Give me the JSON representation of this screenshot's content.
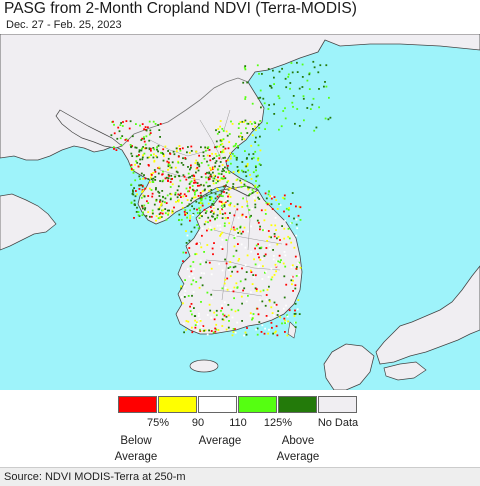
{
  "title": "PASG from 2-Month Cropland NDVI (Terra-MODIS)",
  "date_range": "Dec. 27 - Feb. 25, 2023",
  "legend": {
    "swatches": [
      {
        "name": "swatch-red",
        "color": "#ff0000"
      },
      {
        "name": "swatch-yellow",
        "color": "#ffff00"
      },
      {
        "name": "swatch-white",
        "color": "#ffffff"
      },
      {
        "name": "swatch-lightgreen",
        "color": "#55ff11"
      },
      {
        "name": "swatch-darkgreen",
        "color": "#237a0a"
      },
      {
        "name": "swatch-nodata",
        "color": "#f0eef2"
      }
    ],
    "ticks": [
      "75%",
      "90",
      "110",
      "125%"
    ],
    "nodata_label": "No Data",
    "below_label_1": "Below",
    "below_label_2": "Average",
    "avg_label": "Average",
    "above_label_1": "Above",
    "above_label_2": "Average"
  },
  "source": "Source: NDVI MODIS-Terra at 250-m",
  "colors": {
    "sea": "#9ef3fa",
    "land": "#f0eef2",
    "border": "#555555"
  }
}
